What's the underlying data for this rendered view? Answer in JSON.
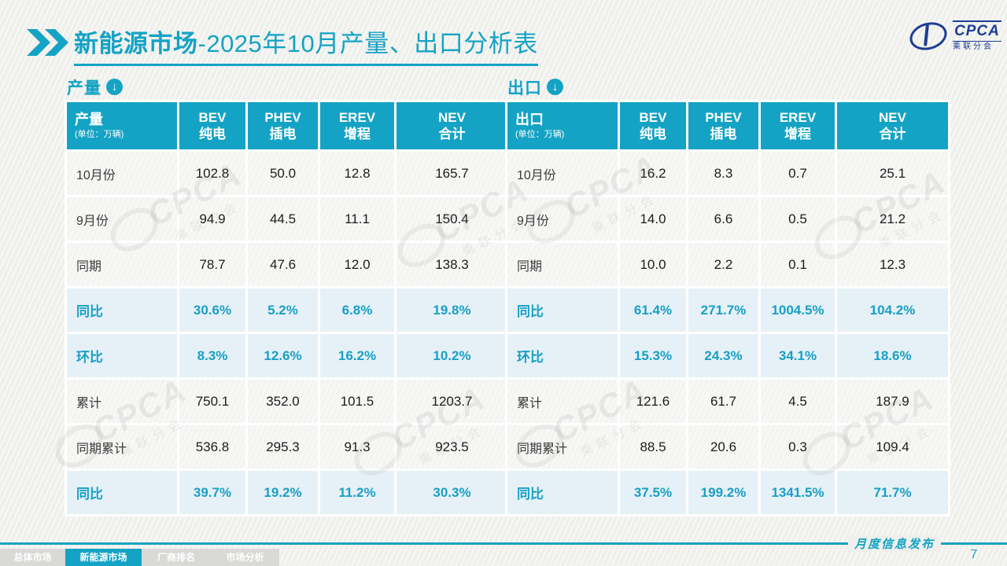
{
  "title": {
    "emphasis": "新能源市场",
    "rest": "-2025年10月产量、出口分析表"
  },
  "logo": {
    "acronym": "CPCA",
    "subtitle": "乘联分会"
  },
  "icons": {
    "down_arrow_glyph": "↓"
  },
  "colors": {
    "accent_teal": "#14a3c4",
    "highlight_row_bg": "#e6f1f7",
    "logo_blue": "#1d3e94",
    "inactive_tab_gray": "#d9d9d7",
    "page_bg": "#efefec"
  },
  "watermark": {
    "line1": "CPCA",
    "line2": "乘联分会"
  },
  "tables": [
    {
      "section_label": "产量",
      "unit": "(单位：万辆)",
      "columns": [
        {
          "en": "BEV",
          "zh": "纯电"
        },
        {
          "en": "PHEV",
          "zh": "插电"
        },
        {
          "en": "EREV",
          "zh": "增程"
        },
        {
          "en": "NEV",
          "zh": "合计"
        }
      ],
      "rows": [
        {
          "label": "10月份",
          "values": [
            "102.8",
            "50.0",
            "12.8",
            "165.7"
          ],
          "highlight": false
        },
        {
          "label": "9月份",
          "values": [
            "94.9",
            "44.5",
            "11.1",
            "150.4"
          ],
          "highlight": false
        },
        {
          "label": "同期",
          "values": [
            "78.7",
            "47.6",
            "12.0",
            "138.3"
          ],
          "highlight": false
        },
        {
          "label": "同比",
          "values": [
            "30.6%",
            "5.2%",
            "6.8%",
            "19.8%"
          ],
          "highlight": true
        },
        {
          "label": "环比",
          "values": [
            "8.3%",
            "12.6%",
            "16.2%",
            "10.2%"
          ],
          "highlight": true
        },
        {
          "label": "累计",
          "values": [
            "750.1",
            "352.0",
            "101.5",
            "1203.7"
          ],
          "highlight": false
        },
        {
          "label": "同期累计",
          "values": [
            "536.8",
            "295.3",
            "91.3",
            "923.5"
          ],
          "highlight": false
        },
        {
          "label": "同比",
          "values": [
            "39.7%",
            "19.2%",
            "11.2%",
            "30.3%"
          ],
          "highlight": true
        }
      ]
    },
    {
      "section_label": "出口",
      "unit": "(单位：万辆)",
      "columns": [
        {
          "en": "BEV",
          "zh": "纯电"
        },
        {
          "en": "PHEV",
          "zh": "插电"
        },
        {
          "en": "EREV",
          "zh": "增程"
        },
        {
          "en": "NEV",
          "zh": "合计"
        }
      ],
      "rows": [
        {
          "label": "10月份",
          "values": [
            "16.2",
            "8.3",
            "0.7",
            "25.1"
          ],
          "highlight": false
        },
        {
          "label": "9月份",
          "values": [
            "14.0",
            "6.6",
            "0.5",
            "21.2"
          ],
          "highlight": false
        },
        {
          "label": "同期",
          "values": [
            "10.0",
            "2.2",
            "0.1",
            "12.3"
          ],
          "highlight": false
        },
        {
          "label": "同比",
          "values": [
            "61.4%",
            "271.7%",
            "1004.5%",
            "104.2%"
          ],
          "highlight": true
        },
        {
          "label": "环比",
          "values": [
            "15.3%",
            "24.3%",
            "34.1%",
            "18.6%"
          ],
          "highlight": true
        },
        {
          "label": "累计",
          "values": [
            "121.6",
            "61.7",
            "4.5",
            "187.9"
          ],
          "highlight": false
        },
        {
          "label": "同期累计",
          "values": [
            "88.5",
            "20.6",
            "0.3",
            "109.4"
          ],
          "highlight": false
        },
        {
          "label": "同比",
          "values": [
            "37.5%",
            "199.2%",
            "1341.5%",
            "71.7%"
          ],
          "highlight": true
        }
      ]
    }
  ],
  "footer": {
    "tabs": [
      {
        "label": "总体市场",
        "name": "overall-market",
        "active": false
      },
      {
        "label": "新能源市场",
        "name": "nev-market",
        "active": true
      },
      {
        "label": "厂商排名",
        "name": "manufacturer-rank",
        "active": false
      },
      {
        "label": "市场分析",
        "name": "market-analysis",
        "active": false
      }
    ],
    "publication": "月度信息发布",
    "page_number": "7"
  }
}
